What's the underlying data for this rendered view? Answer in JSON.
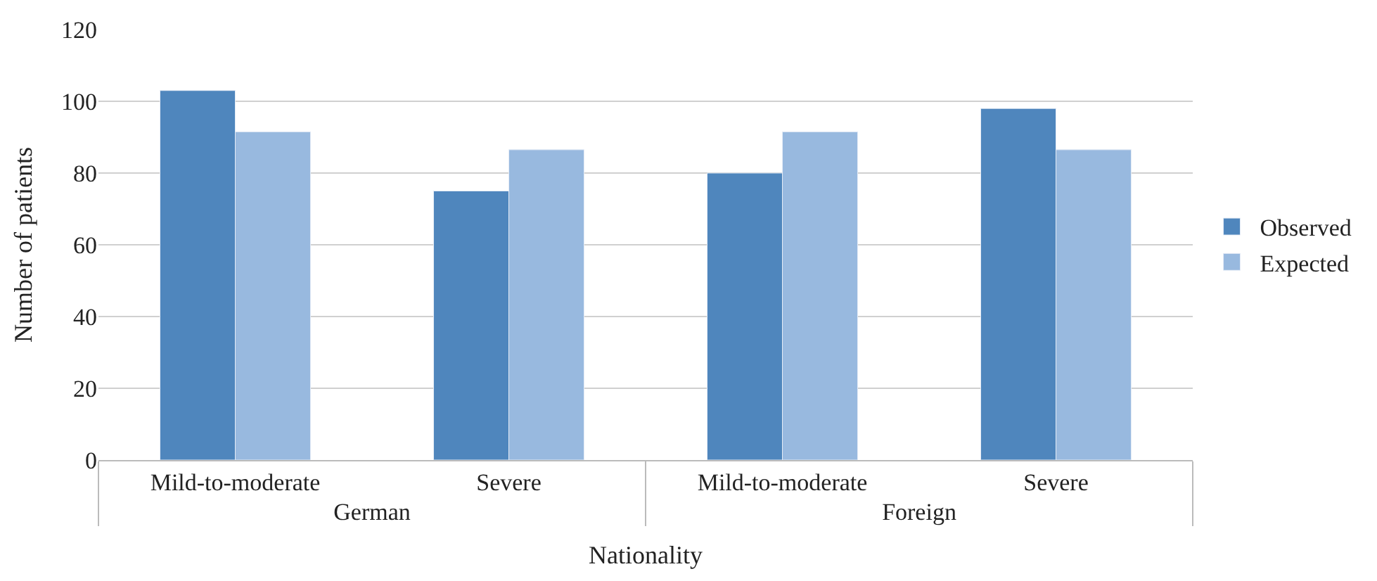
{
  "chart_data": {
    "type": "bar",
    "xlabel": "Nationality",
    "ylabel": "Number of patients",
    "categories": [
      "Mild-to-moderate",
      "Severe",
      "Mild-to-moderate",
      "Severe"
    ],
    "annotations": [
      "German",
      "Foreign"
    ],
    "series": [
      {
        "name": "Observed",
        "color": "#4f86bd",
        "values": [
          103,
          75,
          80,
          98
        ]
      },
      {
        "name": "Expected",
        "color": "#98b9df",
        "values": [
          91.5,
          86.5,
          91.5,
          86.5
        ]
      }
    ],
    "ylim": [
      0,
      120
    ],
    "yticks": [
      0,
      20,
      40,
      60,
      80,
      100,
      120
    ],
    "grid": "y",
    "legend": "right"
  }
}
